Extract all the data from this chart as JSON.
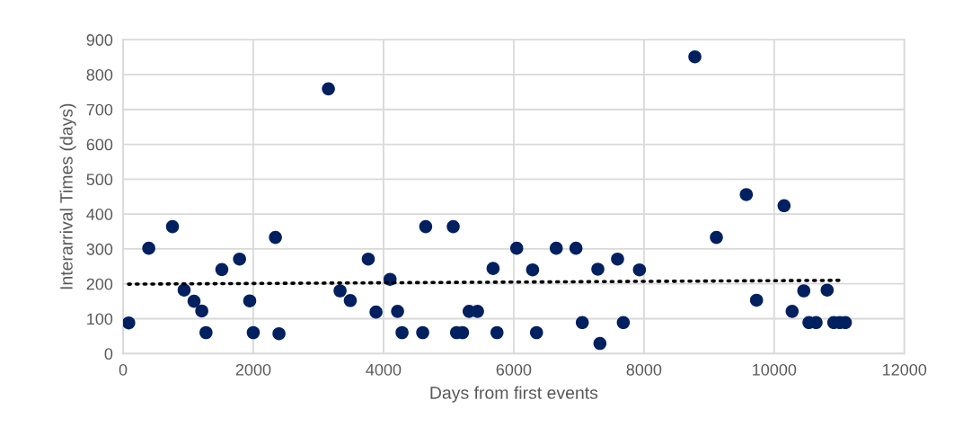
{
  "chart_data": {
    "type": "scatter",
    "xlabel": "Days from first events",
    "ylabel": "Interarrival Times (days)",
    "xlim": [
      0,
      12000
    ],
    "xticks": [
      0,
      2000,
      4000,
      6000,
      8000,
      10000,
      12000
    ],
    "ylim": [
      0,
      900
    ],
    "yticks": [
      0,
      100,
      200,
      300,
      400,
      500,
      600,
      700,
      800,
      900
    ],
    "grid": true,
    "legend": false,
    "marker": "circle",
    "series": [
      {
        "color": "#002060",
        "x": [
          87,
          395,
          759,
          938,
          1090,
          1209,
          1274,
          1517,
          1789,
          1945,
          2000,
          2340,
          2395,
          3154,
          3333,
          3490,
          3766,
          3885,
          4101,
          4216,
          4285,
          4602,
          4648,
          5071,
          5122,
          5214,
          5315,
          5444,
          5683,
          5743,
          6046,
          6290,
          6350,
          6653,
          6956,
          7053,
          7292,
          7324,
          7595,
          7683,
          7931,
          8782,
          9113,
          9572,
          9729,
          10152,
          10276,
          10455,
          10534,
          10644,
          10814,
          10915,
          11007,
          11094
        ],
        "values": [
          88,
          302,
          364,
          182,
          150,
          122,
          60,
          241,
          271,
          151,
          60,
          333,
          57,
          759,
          180,
          152,
          271,
          119,
          213,
          121,
          60,
          60,
          364,
          364,
          60,
          60,
          121,
          121,
          244,
          60,
          302,
          240,
          60,
          302,
          302,
          89,
          242,
          29,
          271,
          89,
          240,
          851,
          333,
          456,
          153,
          424,
          121,
          180,
          89,
          89,
          182,
          89,
          89,
          89
        ]
      },
      {
        "type": "line",
        "color": "#000000",
        "marker": "none",
        "line_style": "dotted",
        "x": [
          83,
          11007
        ],
        "values": [
          199,
          210
        ]
      }
    ]
  }
}
